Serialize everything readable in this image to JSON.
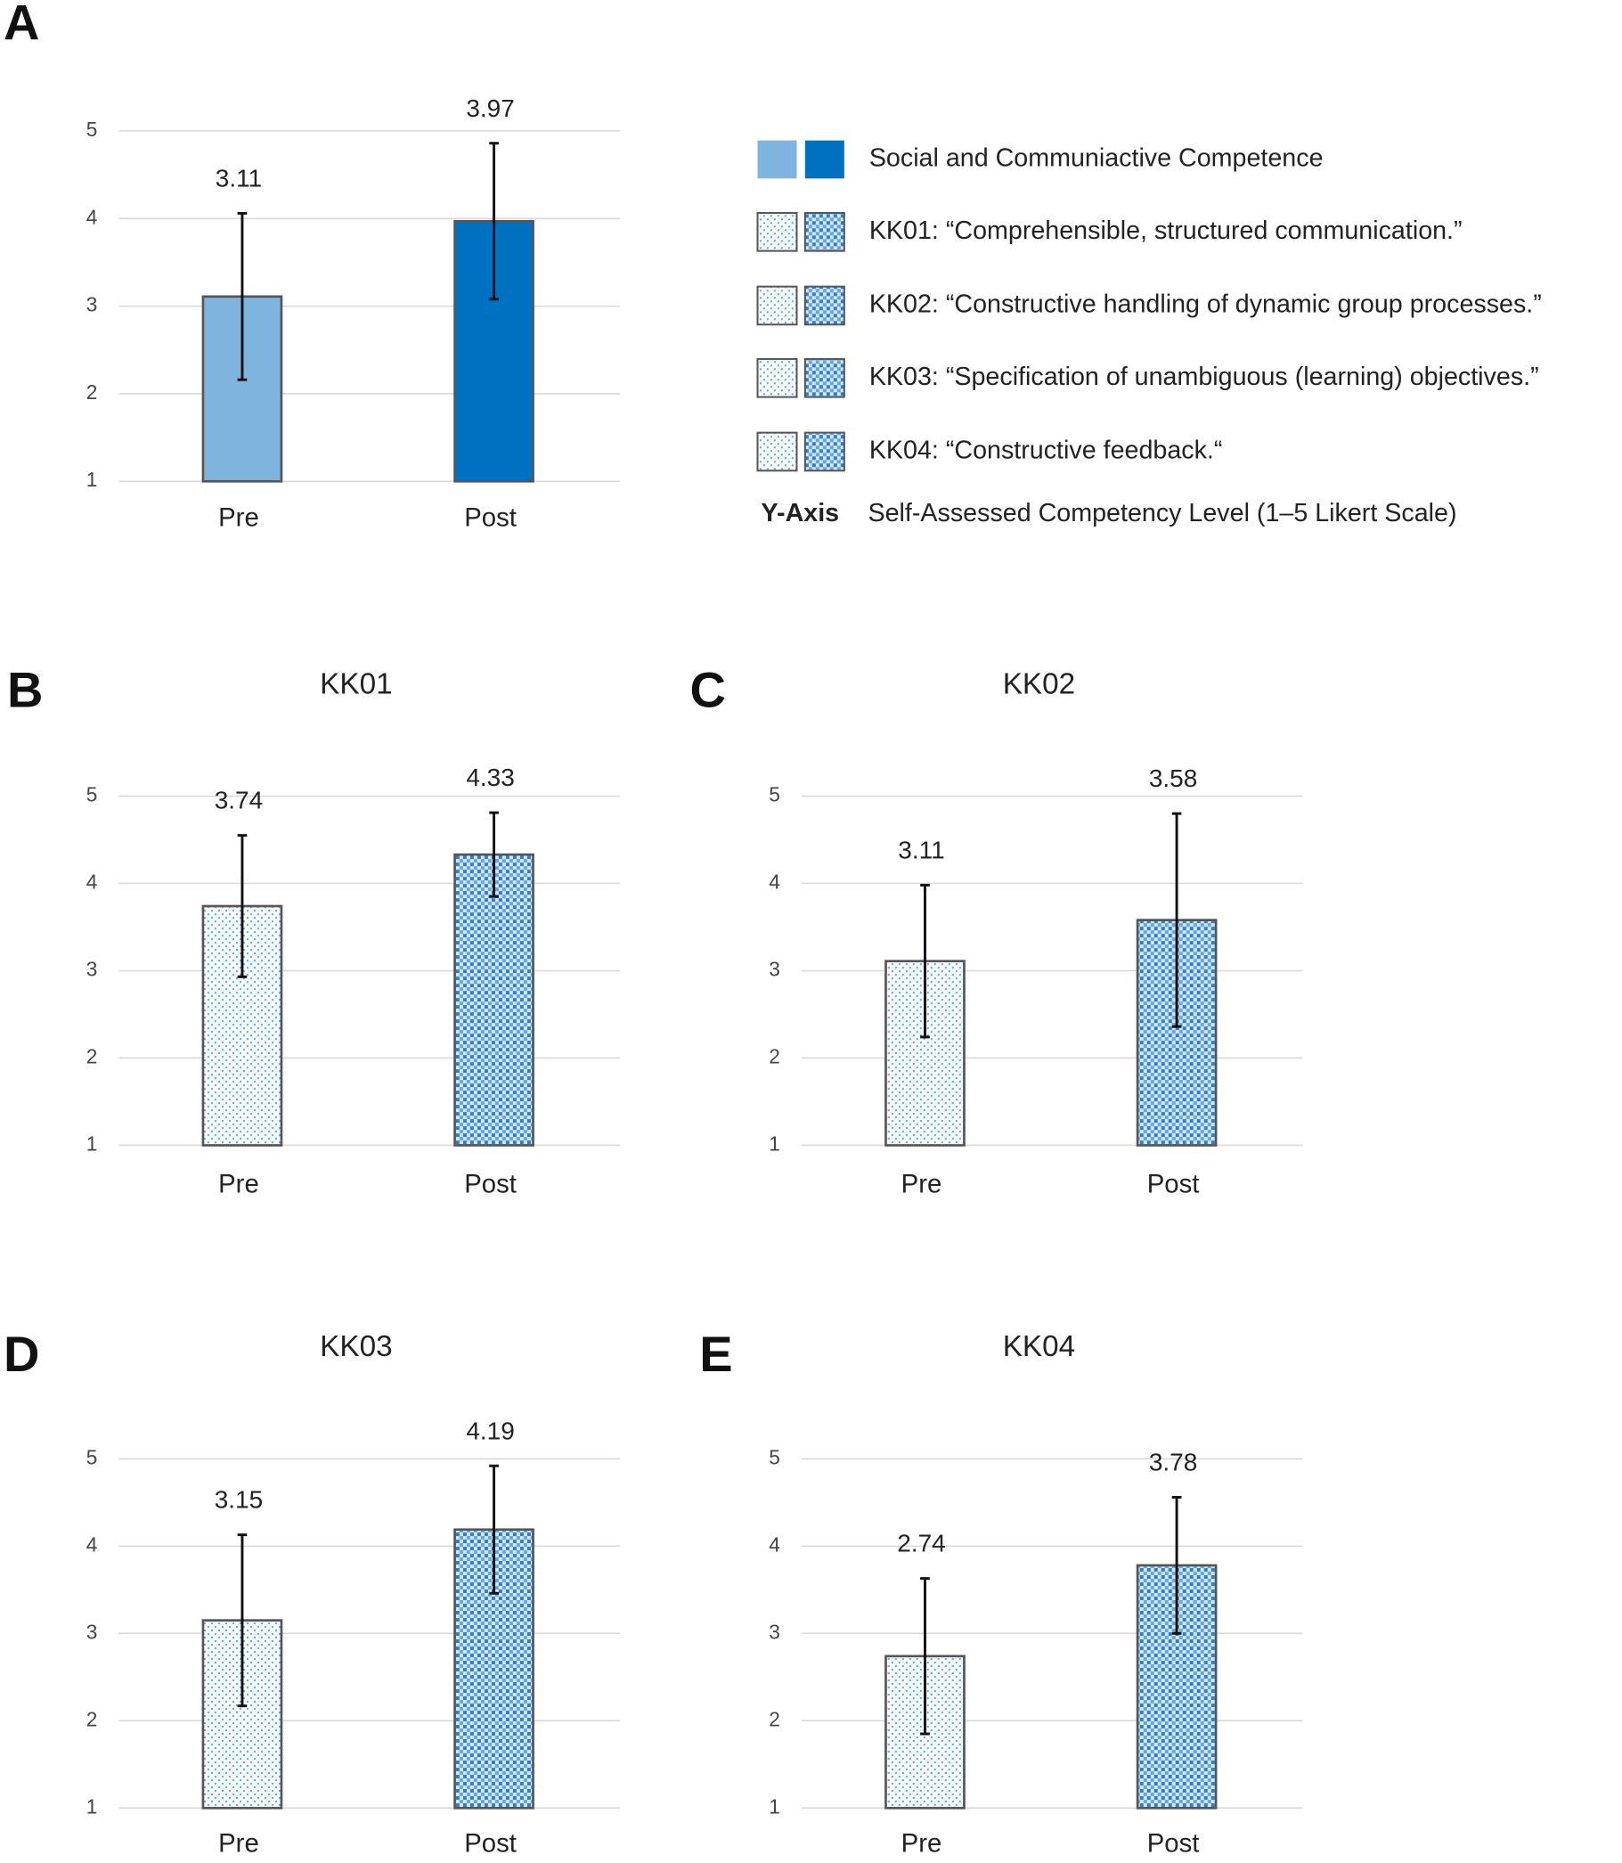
{
  "chart_data": [
    {
      "type": "bar",
      "panel": "A",
      "style": "solid",
      "categories": [
        "Pre",
        "Post"
      ],
      "values": [
        3.11,
        3.97
      ],
      "errors": [
        0.95,
        0.89
      ],
      "colors": [
        "#7fb4de",
        "#0070c0"
      ],
      "ylim": [
        1,
        5
      ],
      "yticks": [
        1,
        2,
        3,
        4,
        5
      ],
      "grid": true
    },
    {
      "type": "bar",
      "panel": "B",
      "title": "KK01",
      "style": "pattern",
      "categories": [
        "Pre",
        "Post"
      ],
      "values": [
        3.74,
        4.33
      ],
      "errors": [
        0.81,
        0.48
      ],
      "colors": [
        "#7fb4de",
        "#0070c0"
      ],
      "ylim": [
        1,
        5
      ],
      "yticks": [
        1,
        2,
        3,
        4,
        5
      ],
      "grid": true
    },
    {
      "type": "bar",
      "panel": "C",
      "title": "KK02",
      "style": "pattern",
      "categories": [
        "Pre",
        "Post"
      ],
      "values": [
        3.11,
        3.58
      ],
      "errors": [
        0.87,
        1.22
      ],
      "colors": [
        "#7fb4de",
        "#0070c0"
      ],
      "ylim": [
        1,
        5
      ],
      "yticks": [
        1,
        2,
        3,
        4,
        5
      ],
      "grid": true
    },
    {
      "type": "bar",
      "panel": "D",
      "title": "KK03",
      "style": "pattern",
      "categories": [
        "Pre",
        "Post"
      ],
      "values": [
        3.15,
        4.19
      ],
      "errors": [
        0.98,
        0.73
      ],
      "colors": [
        "#7fb4de",
        "#0070c0"
      ],
      "ylim": [
        1,
        5
      ],
      "yticks": [
        1,
        2,
        3,
        4,
        5
      ],
      "grid": true
    },
    {
      "type": "bar",
      "panel": "E",
      "title": "KK04",
      "style": "pattern",
      "categories": [
        "Pre",
        "Post"
      ],
      "values": [
        2.74,
        3.78
      ],
      "errors": [
        0.89,
        0.78
      ],
      "colors": [
        "#7fb4de",
        "#0070c0"
      ],
      "ylim": [
        1,
        5
      ],
      "yticks": [
        1,
        2,
        3,
        4,
        5
      ],
      "grid": true
    }
  ],
  "legend": {
    "entries": [
      {
        "label": "Social and Communiactive Competence",
        "style": "solid"
      },
      {
        "label": "KK01: “Comprehensible, structured communication.”",
        "style": "pattern"
      },
      {
        "label": "KK02: “Constructive handling of dynamic group processes.”",
        "style": "pattern"
      },
      {
        "label": "KK03: “Specification of unambiguous (learning) objectives.”",
        "style": "pattern"
      },
      {
        "label": "KK04: “Constructive feedback.“",
        "style": "pattern"
      }
    ],
    "y_axis_key": "Y-Axis",
    "y_axis_label": "Self-Assessed Competency Level (1–5 Likert Scale)"
  }
}
